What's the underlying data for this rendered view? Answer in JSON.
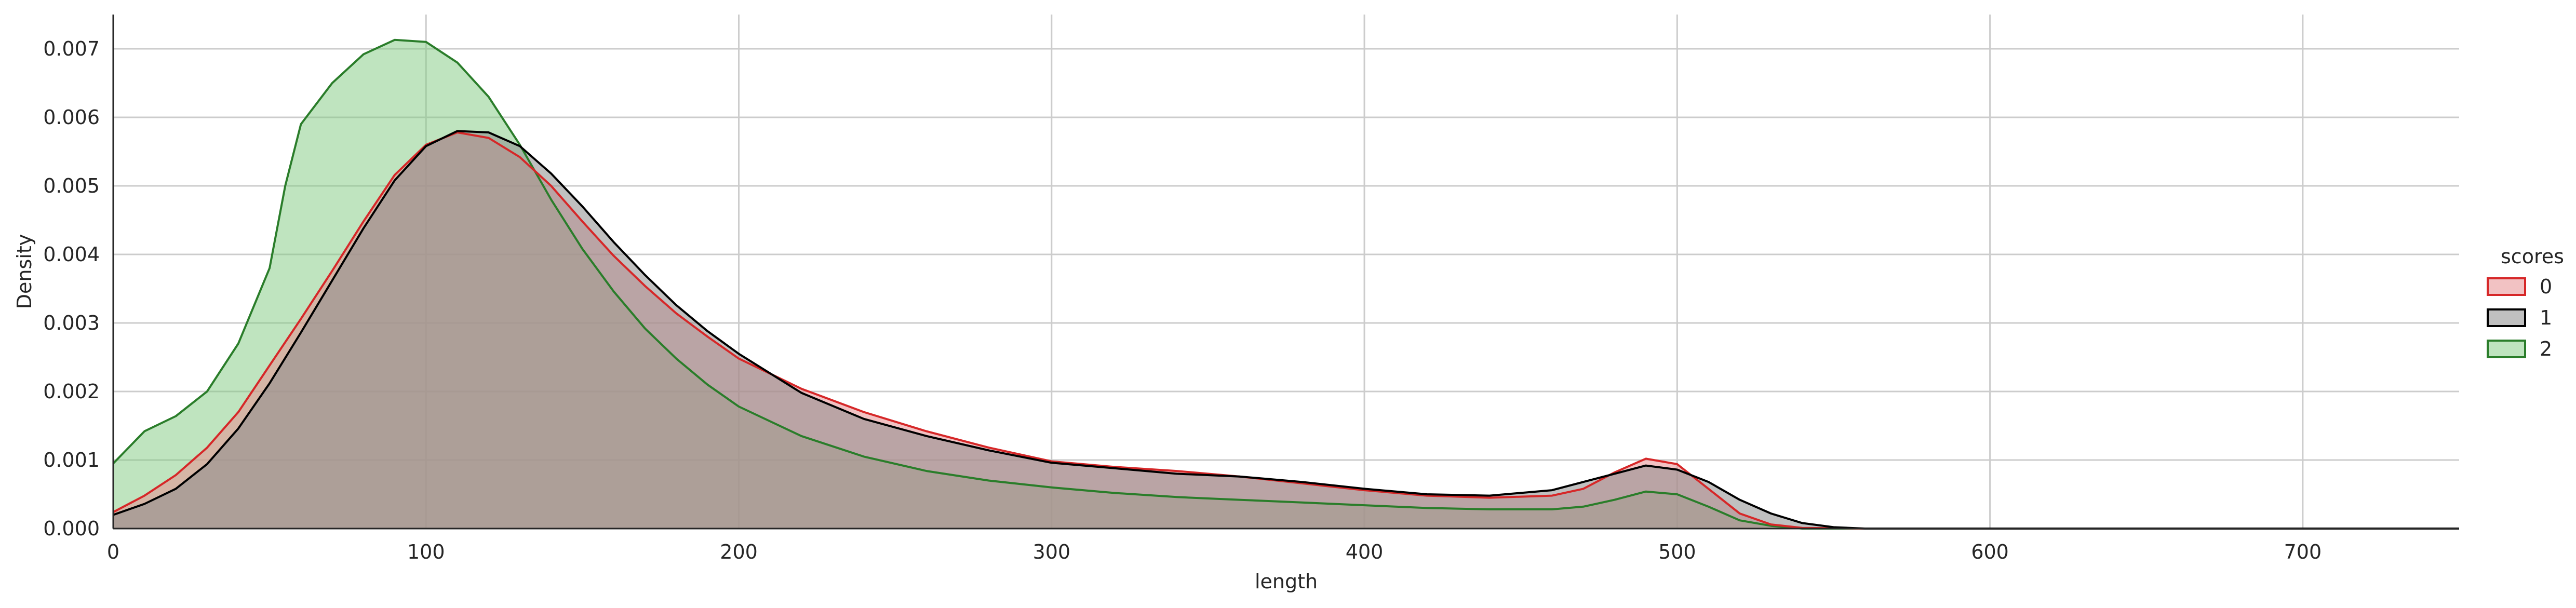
{
  "chart_data": {
    "type": "area",
    "xlabel": "length",
    "ylabel": "Density",
    "xlim": [
      0,
      750
    ],
    "ylim": [
      0,
      0.0075
    ],
    "x_ticks": [
      0,
      100,
      200,
      300,
      400,
      500,
      600,
      700
    ],
    "x_tick_labels": [
      "0",
      "100",
      "200",
      "300",
      "400",
      "500",
      "600",
      "700"
    ],
    "y_ticks": [
      0,
      0.001,
      0.002,
      0.003,
      0.004,
      0.005,
      0.006,
      0.007
    ],
    "y_tick_labels": [
      "0.000",
      "0.001",
      "0.002",
      "0.003",
      "0.004",
      "0.005",
      "0.006",
      "0.007"
    ],
    "grid": true,
    "legend": {
      "title": "scores",
      "placement": "right"
    },
    "series": [
      {
        "name": "0",
        "line_color": "#d62728",
        "fill_color": "#e89091",
        "fill_opacity": 0.55,
        "points": [
          [
            0,
            0.00024
          ],
          [
            10,
            0.00048
          ],
          [
            20,
            0.00078
          ],
          [
            30,
            0.00118
          ],
          [
            40,
            0.0017
          ],
          [
            50,
            0.00238
          ],
          [
            60,
            0.00306
          ],
          [
            70,
            0.00376
          ],
          [
            80,
            0.00448
          ],
          [
            90,
            0.00516
          ],
          [
            100,
            0.0056
          ],
          [
            110,
            0.00578
          ],
          [
            120,
            0.0057
          ],
          [
            130,
            0.00542
          ],
          [
            140,
            0.005
          ],
          [
            150,
            0.00448
          ],
          [
            160,
            0.00398
          ],
          [
            170,
            0.00354
          ],
          [
            180,
            0.00314
          ],
          [
            190,
            0.0028
          ],
          [
            200,
            0.00248
          ],
          [
            220,
            0.00204
          ],
          [
            240,
            0.0017
          ],
          [
            260,
            0.00142
          ],
          [
            280,
            0.00118
          ],
          [
            300,
            0.00098
          ],
          [
            320,
            0.0009
          ],
          [
            340,
            0.00084
          ],
          [
            360,
            0.00076
          ],
          [
            380,
            0.00066
          ],
          [
            400,
            0.00056
          ],
          [
            420,
            0.00048
          ],
          [
            440,
            0.00045
          ],
          [
            460,
            0.00048
          ],
          [
            470,
            0.00058
          ],
          [
            480,
            0.00082
          ],
          [
            490,
            0.00102
          ],
          [
            500,
            0.00094
          ],
          [
            510,
            0.00058
          ],
          [
            520,
            0.00022
          ],
          [
            530,
            6e-05
          ],
          [
            540,
            1e-05
          ],
          [
            560,
            0.0
          ],
          [
            750,
            0.0
          ]
        ]
      },
      {
        "name": "1",
        "line_color": "#000000",
        "fill_color": "#8c8c8c",
        "fill_opacity": 0.55,
        "points": [
          [
            0,
            0.0002
          ],
          [
            10,
            0.00036
          ],
          [
            20,
            0.00058
          ],
          [
            30,
            0.00094
          ],
          [
            40,
            0.00146
          ],
          [
            50,
            0.00212
          ],
          [
            60,
            0.00286
          ],
          [
            70,
            0.00362
          ],
          [
            80,
            0.00438
          ],
          [
            90,
            0.00508
          ],
          [
            100,
            0.00558
          ],
          [
            110,
            0.0058
          ],
          [
            120,
            0.00578
          ],
          [
            130,
            0.00558
          ],
          [
            140,
            0.00518
          ],
          [
            150,
            0.0047
          ],
          [
            160,
            0.00418
          ],
          [
            170,
            0.0037
          ],
          [
            180,
            0.00326
          ],
          [
            190,
            0.00288
          ],
          [
            200,
            0.00255
          ],
          [
            220,
            0.00198
          ],
          [
            240,
            0.0016
          ],
          [
            260,
            0.00135
          ],
          [
            280,
            0.00114
          ],
          [
            300,
            0.00096
          ],
          [
            320,
            0.00088
          ],
          [
            340,
            0.0008
          ],
          [
            360,
            0.00076
          ],
          [
            380,
            0.00068
          ],
          [
            400,
            0.00058
          ],
          [
            420,
            0.0005
          ],
          [
            440,
            0.00048
          ],
          [
            460,
            0.00056
          ],
          [
            470,
            0.00068
          ],
          [
            480,
            0.0008
          ],
          [
            490,
            0.00092
          ],
          [
            500,
            0.00086
          ],
          [
            510,
            0.00068
          ],
          [
            520,
            0.00042
          ],
          [
            530,
            0.00022
          ],
          [
            540,
            8e-05
          ],
          [
            550,
            2e-05
          ],
          [
            560,
            0.0
          ],
          [
            750,
            0.0
          ]
        ]
      },
      {
        "name": "2",
        "line_color": "#2a7d2a",
        "fill_color": "#7fc97f",
        "fill_opacity": 0.5,
        "points": [
          [
            0,
            0.00095
          ],
          [
            10,
            0.00142
          ],
          [
            20,
            0.00164
          ],
          [
            30,
            0.002
          ],
          [
            40,
            0.0027
          ],
          [
            50,
            0.0038
          ],
          [
            55,
            0.005
          ],
          [
            60,
            0.0059
          ],
          [
            70,
            0.0065
          ],
          [
            80,
            0.00692
          ],
          [
            90,
            0.00713
          ],
          [
            100,
            0.0071
          ],
          [
            110,
            0.0068
          ],
          [
            120,
            0.0063
          ],
          [
            130,
            0.0056
          ],
          [
            140,
            0.0048
          ],
          [
            150,
            0.00408
          ],
          [
            160,
            0.00346
          ],
          [
            170,
            0.00292
          ],
          [
            180,
            0.00248
          ],
          [
            190,
            0.0021
          ],
          [
            200,
            0.00178
          ],
          [
            220,
            0.00135
          ],
          [
            240,
            0.00105
          ],
          [
            260,
            0.00084
          ],
          [
            280,
            0.0007
          ],
          [
            300,
            0.0006
          ],
          [
            320,
            0.00052
          ],
          [
            340,
            0.00046
          ],
          [
            360,
            0.00042
          ],
          [
            380,
            0.00038
          ],
          [
            400,
            0.00034
          ],
          [
            420,
            0.0003
          ],
          [
            440,
            0.00028
          ],
          [
            460,
            0.00028
          ],
          [
            470,
            0.00032
          ],
          [
            480,
            0.00042
          ],
          [
            490,
            0.00054
          ],
          [
            500,
            0.0005
          ],
          [
            510,
            0.00032
          ],
          [
            520,
            0.00012
          ],
          [
            530,
            4e-05
          ],
          [
            540,
            0.0
          ],
          [
            750,
            0.0
          ]
        ]
      }
    ]
  }
}
